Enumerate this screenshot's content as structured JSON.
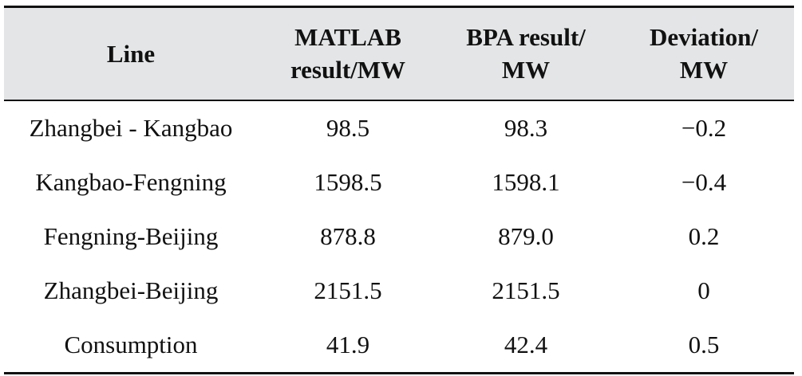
{
  "table": {
    "headers": [
      {
        "line1": "Line",
        "line2": ""
      },
      {
        "line1": "MATLAB",
        "line2": "result/MW"
      },
      {
        "line1": "BPA result/",
        "line2": "MW"
      },
      {
        "line1": "Deviation/",
        "line2": "MW"
      }
    ],
    "rows": [
      {
        "line": "Zhangbei - Kangbao",
        "matlab": "98.5",
        "bpa": "98.3",
        "deviation": "−0.2"
      },
      {
        "line": "Kangbao-Fengning",
        "matlab": "1598.5",
        "bpa": "1598.1",
        "deviation": "−0.4"
      },
      {
        "line": "Fengning-Beijing",
        "matlab": "878.8",
        "bpa": "879.0",
        "deviation": "0.2"
      },
      {
        "line": "Zhangbei-Beijing",
        "matlab": "2151.5",
        "bpa": "2151.5",
        "deviation": "0"
      },
      {
        "line": "Consumption",
        "matlab": "41.9",
        "bpa": "42.4",
        "deviation": "0.5"
      }
    ]
  }
}
